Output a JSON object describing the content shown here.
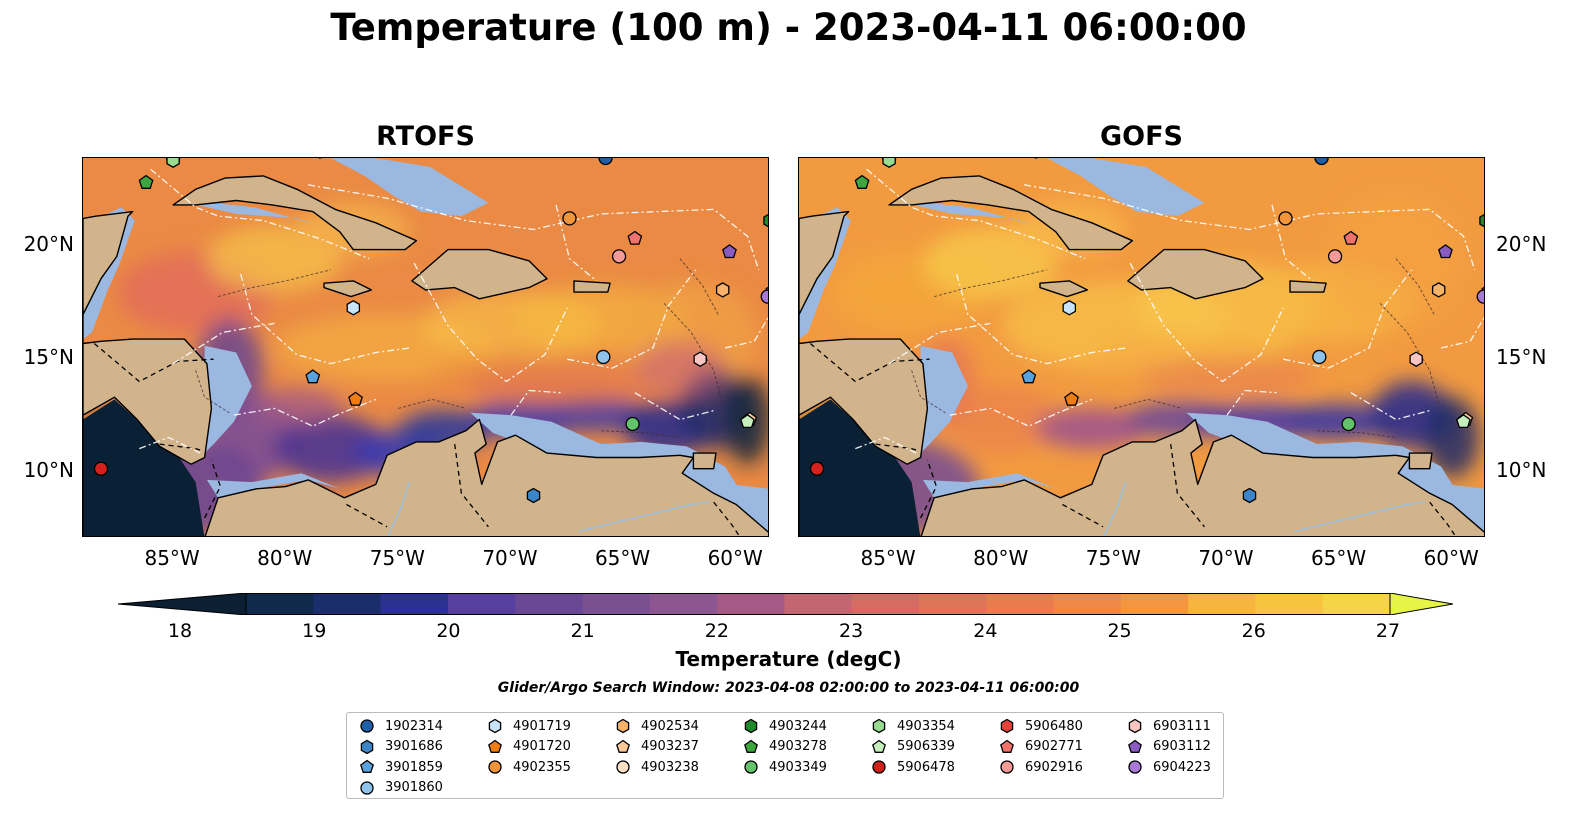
{
  "title": "Temperature (100 m) - 2023-04-11 06:00:00",
  "panels": [
    {
      "title": "RTOFS"
    },
    {
      "title": "GOFS"
    }
  ],
  "axes": {
    "x_ticks": [
      "85°W",
      "80°W",
      "75°W",
      "70°W",
      "65°W",
      "60°W"
    ],
    "y_ticks": [
      "20°N",
      "15°N",
      "10°N"
    ],
    "lon_range": [
      -89,
      -58.5
    ],
    "lat_range": [
      7,
      24
    ]
  },
  "colorbar": {
    "ticks": [
      "18",
      "19",
      "20",
      "21",
      "22",
      "23",
      "24",
      "25",
      "26",
      "27"
    ],
    "label": "Temperature (degC)",
    "range": [
      18,
      27
    ],
    "extend": "both",
    "colormap": "thermal"
  },
  "search_window": "Glider/Argo Search Window: 2023-04-08 02:00:00 to 2023-04-11 06:00:00",
  "colors": {
    "land": "#d2b48c",
    "shallow": "#9ab8e0",
    "cold": "#0a2035",
    "warm": "#f49a3e",
    "hot": "#f6c43c"
  },
  "legend": [
    {
      "id": "1902314",
      "marker": "circle",
      "color": "#1f5fa8"
    },
    {
      "id": "3901686",
      "marker": "hexagon",
      "color": "#3c86c7"
    },
    {
      "id": "3901859",
      "marker": "pentagon",
      "color": "#5aa2dc"
    },
    {
      "id": "3901860",
      "marker": "circle",
      "color": "#8ec4ec"
    },
    {
      "id": "4901719",
      "marker": "hexagon",
      "color": "#c9e4f8"
    },
    {
      "id": "4901720",
      "marker": "pentagon",
      "color": "#f07d13"
    },
    {
      "id": "4902355",
      "marker": "circle",
      "color": "#f2943a"
    },
    {
      "id": "4902534",
      "marker": "hexagon",
      "color": "#f8b26a"
    },
    {
      "id": "4903237",
      "marker": "pentagon",
      "color": "#fbc898"
    },
    {
      "id": "4903238",
      "marker": "circle",
      "color": "#fde2c6"
    },
    {
      "id": "4903244",
      "marker": "hexagon",
      "color": "#1e8a2c"
    },
    {
      "id": "4903278",
      "marker": "pentagon",
      "color": "#3ea63f"
    },
    {
      "id": "4903349",
      "marker": "circle",
      "color": "#62c36a"
    },
    {
      "id": "4903354",
      "marker": "hexagon",
      "color": "#98dc8f"
    },
    {
      "id": "5906339",
      "marker": "pentagon",
      "color": "#c7efbd"
    },
    {
      "id": "5906478",
      "marker": "circle",
      "color": "#d3221d"
    },
    {
      "id": "5906480",
      "marker": "hexagon",
      "color": "#e4443c"
    },
    {
      "id": "6902771",
      "marker": "pentagon",
      "color": "#f0726c"
    },
    {
      "id": "6902916",
      "marker": "circle",
      "color": "#f59a97"
    },
    {
      "id": "6903111",
      "marker": "hexagon",
      "color": "#f9c6c3"
    },
    {
      "id": "6903112",
      "marker": "pentagon",
      "color": "#8a5cc0"
    },
    {
      "id": "6904223",
      "marker": "circle",
      "color": "#a87ad6"
    }
  ],
  "observations": [
    {
      "id": "1902314",
      "lon": -65.8,
      "lat": 24.0
    },
    {
      "id": "3901686",
      "lon": -69.0,
      "lat": 8.9
    },
    {
      "id": "3901859",
      "lon": -78.8,
      "lat": 14.2
    },
    {
      "id": "3901860",
      "lon": -65.9,
      "lat": 15.1
    },
    {
      "id": "4901719",
      "lon": -77.0,
      "lat": 17.3
    },
    {
      "id": "4901720",
      "lon": -76.9,
      "lat": 13.2
    },
    {
      "id": "4902355",
      "lon": -67.4,
      "lat": 21.3
    },
    {
      "id": "4902534",
      "lon": -60.6,
      "lat": 18.1
    },
    {
      "id": "4903237",
      "lon": -59.4,
      "lat": 12.3
    },
    {
      "id": "4903238",
      "lon": -85.0,
      "lat": 24.0
    },
    {
      "id": "4903244",
      "lon": -58.5,
      "lat": 21.2
    },
    {
      "id": "4903278",
      "lon": -86.2,
      "lat": 22.9
    },
    {
      "id": "4903349",
      "lon": -64.6,
      "lat": 12.1
    },
    {
      "id": "4903354",
      "lon": -85.0,
      "lat": 23.9
    },
    {
      "id": "5906339",
      "lon": -59.5,
      "lat": 12.2
    },
    {
      "id": "5906478",
      "lon": -88.2,
      "lat": 10.1
    },
    {
      "id": "5906480",
      "lon": -58.4,
      "lat": 18.0
    },
    {
      "id": "6902771",
      "lon": -64.5,
      "lat": 20.4
    },
    {
      "id": "6902916",
      "lon": -65.2,
      "lat": 19.6
    },
    {
      "id": "6903111",
      "lon": -61.6,
      "lat": 15.0
    },
    {
      "id": "6903112",
      "lon": -60.3,
      "lat": 19.8
    },
    {
      "id": "6904223",
      "lon": -58.6,
      "lat": 17.8
    }
  ]
}
